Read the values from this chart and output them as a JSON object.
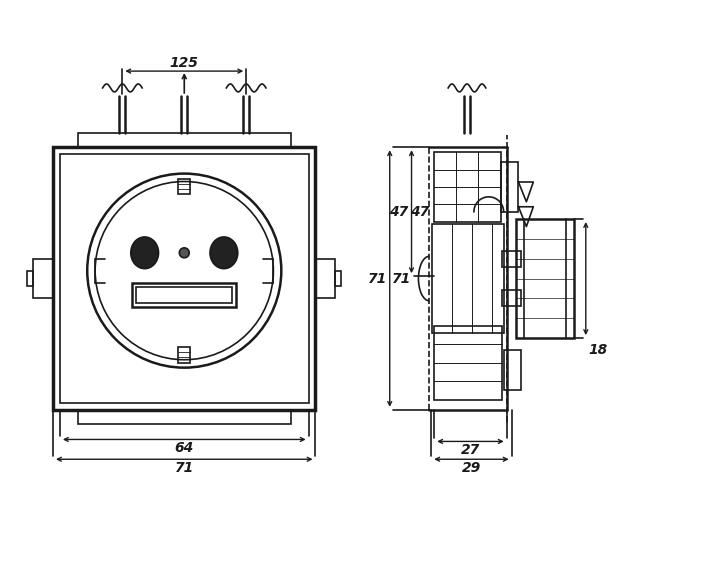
{
  "bg_color": "#ffffff",
  "line_color": "#1a1a1a",
  "fig_width": 7.27,
  "fig_height": 5.66,
  "dpi": 100,
  "annotations": {
    "dim_125": "125",
    "dim_64": "64",
    "dim_71_bottom": "71",
    "dim_71_side": "71",
    "dim_47": "47",
    "dim_27": "27",
    "dim_29": "29",
    "dim_18": "18"
  }
}
